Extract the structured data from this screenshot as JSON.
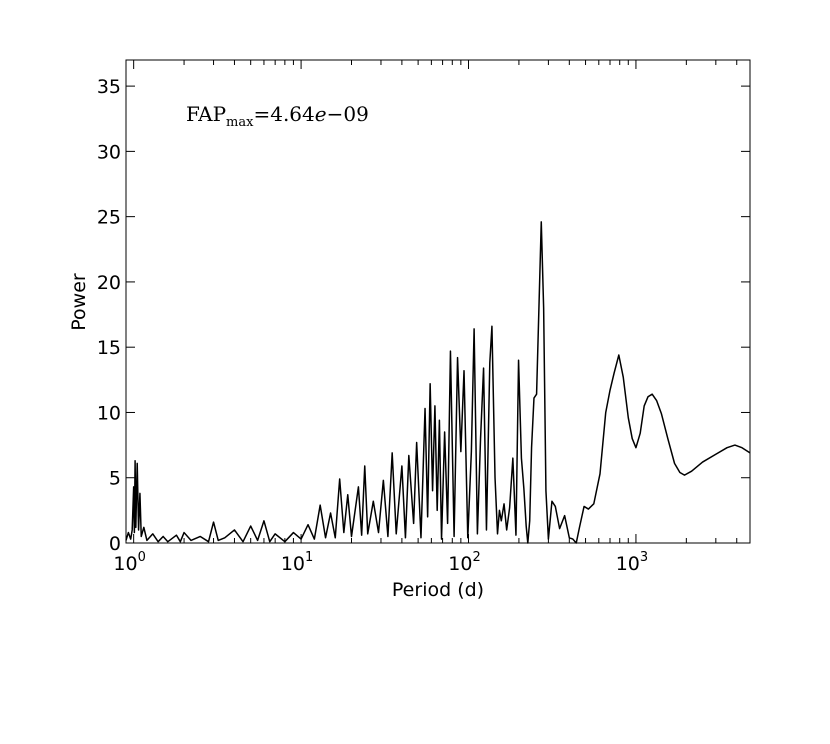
{
  "chart_data": {
    "type": "line",
    "title": "",
    "xlabel": "Period (d)",
    "ylabel": "Power",
    "x_scale": "log",
    "xlim": [
      0.9,
      4800
    ],
    "ylim": [
      0,
      37
    ],
    "x_ticks": [
      1,
      10,
      100,
      1000
    ],
    "x_tick_labels": [
      {
        "base": "10",
        "exp": "0"
      },
      {
        "base": "10",
        "exp": "1"
      },
      {
        "base": "10",
        "exp": "2"
      },
      {
        "base": "10",
        "exp": "3"
      }
    ],
    "y_ticks": [
      0,
      5,
      10,
      15,
      20,
      25,
      30,
      35
    ],
    "y_tick_labels": [
      "0",
      "5",
      "10",
      "15",
      "20",
      "25",
      "30",
      "35"
    ],
    "grid": false,
    "annotation": {
      "prefix": "FAP",
      "sub": "max",
      "eq": "=4.64",
      "mant": "e",
      "suffix": "−09"
    },
    "series": [
      {
        "color": "#000000",
        "points": [
          [
            0.9,
            0.2
          ],
          [
            0.93,
            0.8
          ],
          [
            0.96,
            0.3
          ],
          [
            0.98,
            1.0
          ],
          [
            1.0,
            4.3
          ],
          [
            1.01,
            0.8
          ],
          [
            1.02,
            6.3
          ],
          [
            1.03,
            1.2
          ],
          [
            1.05,
            6.1
          ],
          [
            1.07,
            1.0
          ],
          [
            1.09,
            3.8
          ],
          [
            1.11,
            0.5
          ],
          [
            1.15,
            1.2
          ],
          [
            1.2,
            0.2
          ],
          [
            1.3,
            0.7
          ],
          [
            1.4,
            0.1
          ],
          [
            1.5,
            0.5
          ],
          [
            1.6,
            0.1
          ],
          [
            1.8,
            0.6
          ],
          [
            1.9,
            0.1
          ],
          [
            2.0,
            0.8
          ],
          [
            2.2,
            0.2
          ],
          [
            2.5,
            0.5
          ],
          [
            2.8,
            0.1
          ],
          [
            3.0,
            1.6
          ],
          [
            3.2,
            0.2
          ],
          [
            3.5,
            0.4
          ],
          [
            4.0,
            1.0
          ],
          [
            4.5,
            0.1
          ],
          [
            5.0,
            1.3
          ],
          [
            5.5,
            0.2
          ],
          [
            6.0,
            1.7
          ],
          [
            6.5,
            0.1
          ],
          [
            7.0,
            0.7
          ],
          [
            8.0,
            0.1
          ],
          [
            9.0,
            0.8
          ],
          [
            10.0,
            0.3
          ],
          [
            11.0,
            1.4
          ],
          [
            12.0,
            0.3
          ],
          [
            13.0,
            2.9
          ],
          [
            14.0,
            0.4
          ],
          [
            15.0,
            2.3
          ],
          [
            16.0,
            0.4
          ],
          [
            17.0,
            4.9
          ],
          [
            18.0,
            0.8
          ],
          [
            19.0,
            3.7
          ],
          [
            20.0,
            0.5
          ],
          [
            22.0,
            4.3
          ],
          [
            23.0,
            0.6
          ],
          [
            24.0,
            5.9
          ],
          [
            25.0,
            0.7
          ],
          [
            27.0,
            3.2
          ],
          [
            29.0,
            0.8
          ],
          [
            31.0,
            4.8
          ],
          [
            33.0,
            0.5
          ],
          [
            35.0,
            6.9
          ],
          [
            37.0,
            0.7
          ],
          [
            40.0,
            5.9
          ],
          [
            42.0,
            0.4
          ],
          [
            44.0,
            6.7
          ],
          [
            47.0,
            1.5
          ],
          [
            49.0,
            7.7
          ],
          [
            52.0,
            0.4
          ],
          [
            55.0,
            10.3
          ],
          [
            57.0,
            2.0
          ],
          [
            59.0,
            12.2
          ],
          [
            61.0,
            4.0
          ],
          [
            63.0,
            10.5
          ],
          [
            65.0,
            2.5
          ],
          [
            67.0,
            9.4
          ],
          [
            69.0,
            0.3
          ],
          [
            72.0,
            8.5
          ],
          [
            75.0,
            1.5
          ],
          [
            78.0,
            14.7
          ],
          [
            82.0,
            0.5
          ],
          [
            86.0,
            14.2
          ],
          [
            90.0,
            7.0
          ],
          [
            94.0,
            13.2
          ],
          [
            99.0,
            0.4
          ],
          [
            104.0,
            7.0
          ],
          [
            108.0,
            16.4
          ],
          [
            113.0,
            0.7
          ],
          [
            118.0,
            8.0
          ],
          [
            123.0,
            13.4
          ],
          [
            128.0,
            1.0
          ],
          [
            134.0,
            13.8
          ],
          [
            138.0,
            16.6
          ],
          [
            144.0,
            5.0
          ],
          [
            149.0,
            0.7
          ],
          [
            153.0,
            2.5
          ],
          [
            157.0,
            1.7
          ],
          [
            163.0,
            3.0
          ],
          [
            169.0,
            1.0
          ],
          [
            176.0,
            2.7
          ],
          [
            184.0,
            6.5
          ],
          [
            192.0,
            0.6
          ],
          [
            199.0,
            14.0
          ],
          [
            207.0,
            6.5
          ],
          [
            214.0,
            4.2
          ],
          [
            221.0,
            1.3
          ],
          [
            226.0,
            0.0
          ],
          [
            232.0,
            1.7
          ],
          [
            238.0,
            7.3
          ],
          [
            246.0,
            11.1
          ],
          [
            255.0,
            11.4
          ],
          [
            264.0,
            18.5
          ],
          [
            272.0,
            24.6
          ],
          [
            281.0,
            18.0
          ],
          [
            290.0,
            4.0
          ],
          [
            300.0,
            0.3
          ],
          [
            315.0,
            3.2
          ],
          [
            330.0,
            2.8
          ],
          [
            350.0,
            1.1
          ],
          [
            375.0,
            2.1
          ],
          [
            400.0,
            0.4
          ],
          [
            420.0,
            0.3
          ],
          [
            440.0,
            0.0
          ],
          [
            460.0,
            1.2
          ],
          [
            490.0,
            2.8
          ],
          [
            520.0,
            2.6
          ],
          [
            560.0,
            3.0
          ],
          [
            610.0,
            5.3
          ],
          [
            660.0,
            10.0
          ],
          [
            700.0,
            11.7
          ],
          [
            740.0,
            13.0
          ],
          [
            790.0,
            14.4
          ],
          [
            840.0,
            12.7
          ],
          [
            900.0,
            9.6
          ],
          [
            950.0,
            8.0
          ],
          [
            1000.0,
            7.3
          ],
          [
            1060.0,
            8.4
          ],
          [
            1120.0,
            10.5
          ],
          [
            1180.0,
            11.2
          ],
          [
            1250.0,
            11.4
          ],
          [
            1330.0,
            10.9
          ],
          [
            1420.0,
            9.9
          ],
          [
            1550.0,
            8.0
          ],
          [
            1700.0,
            6.1
          ],
          [
            1830.0,
            5.4
          ],
          [
            1950.0,
            5.2
          ],
          [
            2150.0,
            5.5
          ],
          [
            2500.0,
            6.2
          ],
          [
            3000.0,
            6.8
          ],
          [
            3500.0,
            7.3
          ],
          [
            3900.0,
            7.5
          ],
          [
            4300.0,
            7.3
          ],
          [
            4800.0,
            6.9
          ]
        ]
      }
    ]
  }
}
